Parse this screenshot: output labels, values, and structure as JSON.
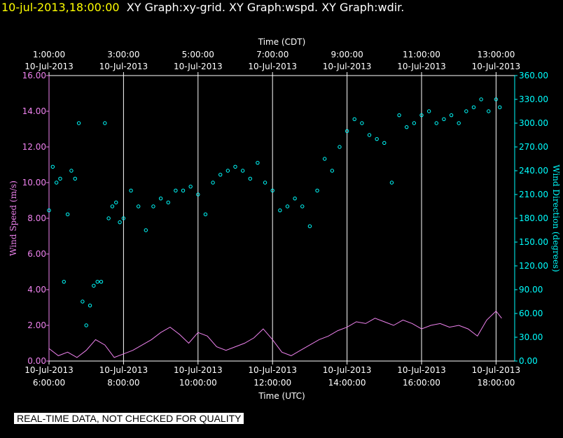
{
  "header": {
    "timestamp": "10-jul-2013,18:00:00",
    "graphs": "XY Graph:xy-grid.  XY Graph:wspd.  XY Graph:wdir."
  },
  "disclaimer": "REAL-TIME DATA, NOT CHECKED FOR QUALITY",
  "colors": {
    "speed": "#ee82ee",
    "direction": "#00ffff",
    "grid": "#ffffff",
    "text": "#ffffff"
  },
  "chart_data": {
    "type": "line",
    "top_axis_label": "Time (CDT)",
    "bottom_axis_label": "Time (UTC)",
    "left_axis_label": "Wind Speed (m/s)",
    "right_axis_label": "Wind Direction (degrees)",
    "x_range_utc_hours": [
      6,
      18.5
    ],
    "top_ticks": [
      {
        "hour": 6,
        "time": "1:00:00",
        "date": "10-Jul-2013"
      },
      {
        "hour": 8,
        "time": "3:00:00",
        "date": "10-Jul-2013"
      },
      {
        "hour": 10,
        "time": "5:00:00",
        "date": "10-Jul-2013"
      },
      {
        "hour": 12,
        "time": "7:00:00",
        "date": "10-Jul-2013"
      },
      {
        "hour": 14,
        "time": "9:00:00",
        "date": "10-Jul-2013"
      },
      {
        "hour": 16,
        "time": "11:00:00",
        "date": "10-Jul-2013"
      },
      {
        "hour": 18,
        "time": "13:00:00",
        "date": "10-Jul-2013"
      }
    ],
    "bottom_ticks": [
      {
        "hour": 6,
        "date": "10-Jul-2013",
        "time": "6:00:00"
      },
      {
        "hour": 8,
        "date": "10-Jul-2013",
        "time": "8:00:00"
      },
      {
        "hour": 10,
        "date": "10-Jul-2013",
        "time": "10:00:00"
      },
      {
        "hour": 12,
        "date": "10-Jul-2013",
        "time": "12:00:00"
      },
      {
        "hour": 14,
        "date": "10-Jul-2013",
        "time": "14:00:00"
      },
      {
        "hour": 16,
        "date": "10-Jul-2013",
        "time": "16:00:00"
      },
      {
        "hour": 18,
        "date": "10-Jul-2013",
        "time": "18:00:00"
      }
    ],
    "left_ticks": [
      "0.00",
      "2.00",
      "4.00",
      "6.00",
      "8.00",
      "10.00",
      "12.00",
      "14.00",
      "16.00"
    ],
    "right_ticks": [
      "0.00",
      "30.00",
      "60.00",
      "90.00",
      "120.00",
      "150.00",
      "180.00",
      "210.00",
      "240.00",
      "270.00",
      "300.00",
      "330.00",
      "360.00"
    ],
    "y_left_range": [
      0,
      16
    ],
    "y_right_range": [
      0,
      360
    ],
    "series": [
      {
        "name": "wspd",
        "axis": "left",
        "style": "line",
        "x": [
          6.0,
          6.25,
          6.5,
          6.75,
          7.0,
          7.25,
          7.5,
          7.75,
          8.0,
          8.25,
          8.5,
          8.75,
          9.0,
          9.25,
          9.5,
          9.75,
          10.0,
          10.25,
          10.5,
          10.75,
          11.0,
          11.25,
          11.5,
          11.75,
          12.0,
          12.25,
          12.5,
          12.75,
          13.0,
          13.25,
          13.5,
          13.75,
          14.0,
          14.25,
          14.5,
          14.75,
          15.0,
          15.25,
          15.5,
          15.75,
          16.0,
          16.25,
          16.5,
          16.75,
          17.0,
          17.25,
          17.5,
          17.75,
          18.0,
          18.15
        ],
        "y": [
          0.7,
          0.3,
          0.5,
          0.2,
          0.6,
          1.2,
          0.9,
          0.2,
          0.4,
          0.6,
          0.9,
          1.2,
          1.6,
          1.9,
          1.5,
          1.0,
          1.6,
          1.4,
          0.8,
          0.6,
          0.8,
          1.0,
          1.3,
          1.8,
          1.2,
          0.5,
          0.3,
          0.6,
          0.9,
          1.2,
          1.4,
          1.7,
          1.9,
          2.2,
          2.1,
          2.4,
          2.2,
          2.0,
          2.3,
          2.1,
          1.8,
          2.0,
          2.1,
          1.9,
          2.0,
          1.8,
          1.4,
          2.3,
          2.8,
          2.4
        ]
      },
      {
        "name": "wdir",
        "axis": "right",
        "style": "points",
        "x": [
          6.0,
          6.1,
          6.2,
          6.3,
          6.4,
          6.5,
          6.6,
          6.7,
          6.8,
          6.9,
          7.0,
          7.1,
          7.2,
          7.3,
          7.4,
          7.5,
          7.6,
          7.7,
          7.8,
          7.9,
          8.0,
          8.2,
          8.4,
          8.6,
          8.8,
          9.0,
          9.2,
          9.4,
          9.6,
          9.8,
          10.0,
          10.2,
          10.4,
          10.6,
          10.8,
          11.0,
          11.2,
          11.4,
          11.6,
          11.8,
          12.0,
          12.2,
          12.4,
          12.6,
          12.8,
          13.0,
          13.2,
          13.4,
          13.6,
          13.8,
          14.0,
          14.2,
          14.4,
          14.6,
          14.8,
          15.0,
          15.2,
          15.4,
          15.6,
          15.8,
          16.0,
          16.2,
          16.4,
          16.6,
          16.8,
          17.0,
          17.2,
          17.4,
          17.6,
          17.8,
          18.0,
          18.1
        ],
        "y": [
          190,
          245,
          225,
          230,
          100,
          185,
          240,
          230,
          300,
          75,
          45,
          70,
          95,
          100,
          100,
          300,
          180,
          195,
          200,
          175,
          180,
          215,
          195,
          165,
          195,
          205,
          200,
          215,
          215,
          220,
          210,
          185,
          225,
          235,
          240,
          245,
          240,
          230,
          250,
          225,
          215,
          190,
          195,
          205,
          195,
          170,
          215,
          255,
          240,
          270,
          290,
          305,
          300,
          285,
          280,
          275,
          225,
          310,
          295,
          300,
          310,
          315,
          300,
          305,
          310,
          300,
          315,
          320,
          330,
          315,
          330,
          320
        ]
      }
    ]
  }
}
